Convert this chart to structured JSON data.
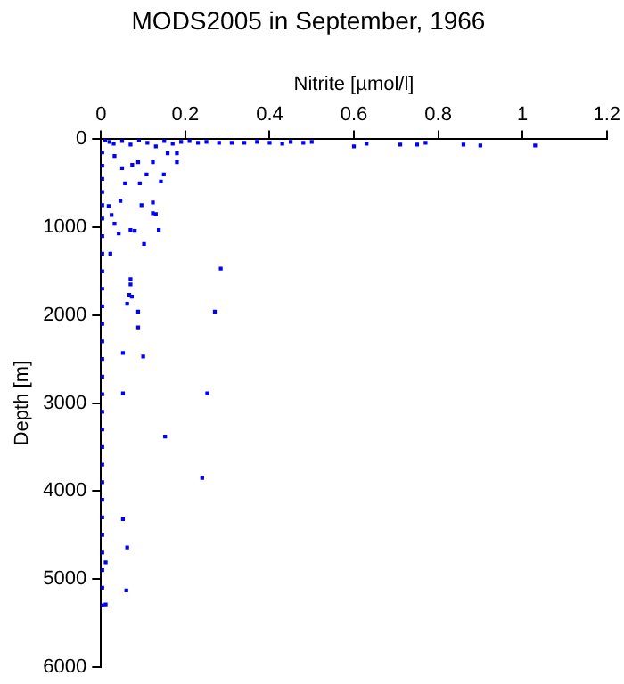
{
  "chart_data": {
    "type": "scatter",
    "title": "MODS2005 in September, 1966",
    "xlabel": "Nitrite [µmol/l]",
    "ylabel": "Depth [m]",
    "xlim": [
      0,
      1.2
    ],
    "xticks": [
      0,
      0.2,
      0.4,
      0.6,
      0.8,
      1,
      1.2
    ],
    "ylim": [
      6000,
      0
    ],
    "yticks": [
      0,
      1000,
      2000,
      3000,
      4000,
      5000,
      6000
    ],
    "grid": false,
    "legend": false,
    "marker": "square",
    "series": [
      {
        "color": "#0000ff",
        "x": [
          0.01,
          0.02,
          0.03,
          0.05,
          0.07,
          0.09,
          0.11,
          0.13,
          0.15,
          0.17,
          0.19,
          0.21,
          0.23,
          0.25,
          0.28,
          0.31,
          0.34,
          0.37,
          0.4,
          0.43,
          0.45,
          0.48,
          0.5,
          0.6,
          0.63,
          0.71,
          0.75,
          0.77,
          0.86,
          0.9,
          1.03,
          0.07,
          0.08,
          0.137,
          0.102,
          0.042,
          0.284,
          0.07,
          0.07,
          0.067,
          0.123,
          0.13,
          0.096,
          0.123,
          0.142,
          0.149,
          0.092,
          0.057,
          0.123,
          0.18,
          0.158,
          0.108,
          0.074,
          0.046,
          0.025,
          0.018,
          0.032,
          0.022,
          0.05,
          0.032,
          0.088,
          0.18,
          0.27,
          0.252,
          0.152,
          0.24,
          0.052,
          0.1,
          0.052,
          0.088,
          0.088,
          0.073,
          0.062,
          0.052,
          0.062,
          0.011,
          0.06,
          0.011,
          0.003,
          0.003,
          0.003,
          0.003,
          0.003,
          0.003,
          0.003,
          0.003,
          0.003,
          0.003,
          0.003,
          0.003,
          0.003,
          0.003,
          0.003,
          0.003,
          0.003,
          0.003,
          0.003,
          0.003,
          0.003,
          0.003,
          0.003,
          0.003,
          0.003,
          0.003,
          0.003,
          0.003
        ],
        "values": [
          10,
          30,
          50,
          20,
          60,
          10,
          40,
          80,
          20,
          50,
          30,
          20,
          40,
          30,
          40,
          40,
          40,
          30,
          40,
          50,
          30,
          40,
          30,
          80,
          50,
          60,
          60,
          40,
          60,
          70,
          70,
          1030,
          1040,
          1030,
          1190,
          1070,
          1470,
          1590,
          1650,
          1770,
          840,
          850,
          750,
          720,
          480,
          400,
          500,
          500,
          260,
          260,
          160,
          400,
          290,
          700,
          860,
          760,
          960,
          1300,
          330,
          190,
          260,
          160,
          1960,
          2890,
          3380,
          3850,
          2430,
          2470,
          2890,
          1960,
          2140,
          1790,
          1870,
          4320,
          4640,
          4810,
          5130,
          5290,
          150,
          300,
          450,
          600,
          750,
          900,
          1100,
          1300,
          1500,
          1700,
          1900,
          2100,
          2300,
          2500,
          2700,
          2900,
          3100,
          3300,
          3500,
          3700,
          3900,
          4100,
          4300,
          4500,
          4700,
          4900,
          5100,
          5300
        ]
      }
    ]
  }
}
